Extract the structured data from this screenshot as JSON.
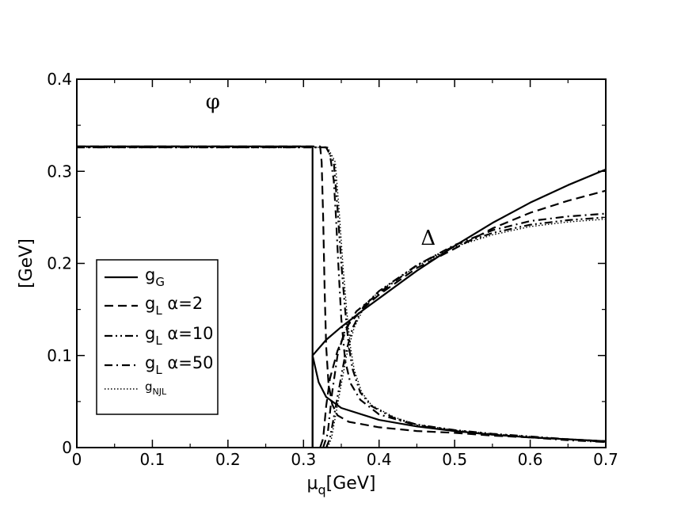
{
  "chart_data": {
    "type": "line",
    "xlabel": "μ_q[GeV]",
    "ylabel": "[GeV]",
    "xlim": [
      0,
      0.7
    ],
    "ylim": [
      0,
      0.4
    ],
    "x_ticks": [
      "0",
      "0.1",
      "0.2",
      "0.3",
      "0.4",
      "0.5",
      "0.6",
      "0.7"
    ],
    "y_ticks": [
      "0",
      "0.1",
      "0.2",
      "0.3",
      "0.4"
    ],
    "grid": false,
    "legend_position": "left",
    "annotations": [
      {
        "text": "φ",
        "x": 0.18,
        "y": 0.375
      },
      {
        "text": "Δ",
        "x": 0.465,
        "y": 0.227
      }
    ],
    "series": [
      {
        "name": "g_G",
        "legend_main": "g",
        "legend_sub": "G",
        "legend_suffix": "",
        "dash": "solid",
        "phi": [
          [
            0,
            0.327
          ],
          [
            0.312,
            0.327
          ],
          [
            0.312,
            0
          ]
        ],
        "delta": [
          [
            0.312,
            0
          ],
          [
            0.312,
            0.1
          ],
          [
            0.33,
            0.117
          ],
          [
            0.35,
            0.131
          ],
          [
            0.38,
            0.15
          ],
          [
            0.4,
            0.162
          ],
          [
            0.45,
            0.192
          ],
          [
            0.5,
            0.219
          ],
          [
            0.55,
            0.244
          ],
          [
            0.6,
            0.266
          ],
          [
            0.65,
            0.285
          ],
          [
            0.7,
            0.302
          ]
        ],
        "low": [
          [
            0.312,
            0.1
          ],
          [
            0.32,
            0.071
          ],
          [
            0.33,
            0.055
          ],
          [
            0.35,
            0.043
          ],
          [
            0.4,
            0.03
          ],
          [
            0.45,
            0.023
          ],
          [
            0.5,
            0.018
          ],
          [
            0.55,
            0.014
          ],
          [
            0.6,
            0.011
          ],
          [
            0.65,
            0.009
          ],
          [
            0.7,
            0.007
          ]
        ]
      },
      {
        "name": "g_L α=2",
        "legend_main": "g",
        "legend_sub": "L",
        "legend_suffix": " α=2",
        "dash": "dashed",
        "phi": [
          [
            0,
            0.327
          ],
          [
            0.322,
            0.327
          ],
          [
            0.324,
            0.31
          ],
          [
            0.326,
            0.25
          ],
          [
            0.328,
            0.17
          ],
          [
            0.33,
            0.11
          ],
          [
            0.333,
            0.07
          ],
          [
            0.338,
            0.047
          ],
          [
            0.345,
            0.035
          ],
          [
            0.36,
            0.028
          ],
          [
            0.4,
            0.022
          ],
          [
            0.45,
            0.018
          ],
          [
            0.5,
            0.016
          ],
          [
            0.55,
            0.013
          ],
          [
            0.6,
            0.011
          ],
          [
            0.65,
            0.009
          ],
          [
            0.7,
            0.007
          ]
        ],
        "delta": [
          [
            0.322,
            0
          ],
          [
            0.326,
            0.01
          ],
          [
            0.33,
            0.045
          ],
          [
            0.335,
            0.075
          ],
          [
            0.345,
            0.105
          ],
          [
            0.36,
            0.134
          ],
          [
            0.38,
            0.152
          ],
          [
            0.4,
            0.166
          ],
          [
            0.45,
            0.195
          ],
          [
            0.5,
            0.216
          ],
          [
            0.55,
            0.238
          ],
          [
            0.6,
            0.255
          ],
          [
            0.65,
            0.268
          ],
          [
            0.7,
            0.279
          ]
        ]
      },
      {
        "name": "g_L α=10",
        "legend_main": "g",
        "legend_sub": "L",
        "legend_suffix": " α=10",
        "dash": "dashdotdot",
        "phi": [
          [
            0,
            0.326
          ],
          [
            0.33,
            0.326
          ],
          [
            0.34,
            0.31
          ],
          [
            0.345,
            0.26
          ],
          [
            0.35,
            0.2
          ],
          [
            0.355,
            0.15
          ],
          [
            0.36,
            0.11
          ],
          [
            0.365,
            0.085
          ],
          [
            0.375,
            0.06
          ],
          [
            0.39,
            0.045
          ],
          [
            0.42,
            0.032
          ],
          [
            0.45,
            0.025
          ],
          [
            0.5,
            0.019
          ],
          [
            0.55,
            0.015
          ],
          [
            0.6,
            0.012
          ],
          [
            0.65,
            0.009
          ],
          [
            0.7,
            0.006
          ]
        ],
        "delta": [
          [
            0.33,
            0
          ],
          [
            0.335,
            0.01
          ],
          [
            0.345,
            0.055
          ],
          [
            0.355,
            0.1
          ],
          [
            0.365,
            0.13
          ],
          [
            0.38,
            0.154
          ],
          [
            0.4,
            0.17
          ],
          [
            0.45,
            0.198
          ],
          [
            0.5,
            0.219
          ],
          [
            0.55,
            0.233
          ],
          [
            0.6,
            0.242
          ],
          [
            0.65,
            0.247
          ],
          [
            0.7,
            0.25
          ]
        ]
      },
      {
        "name": "g_L α=50",
        "legend_main": "g",
        "legend_sub": "L",
        "legend_suffix": " α=50",
        "dash": "dashdot",
        "phi": [
          [
            0,
            0.326
          ],
          [
            0.33,
            0.326
          ],
          [
            0.335,
            0.318
          ],
          [
            0.34,
            0.29
          ],
          [
            0.343,
            0.25
          ],
          [
            0.346,
            0.2
          ],
          [
            0.35,
            0.14
          ],
          [
            0.355,
            0.095
          ],
          [
            0.362,
            0.07
          ],
          [
            0.375,
            0.052
          ],
          [
            0.4,
            0.036
          ],
          [
            0.45,
            0.024
          ],
          [
            0.5,
            0.018
          ],
          [
            0.55,
            0.014
          ],
          [
            0.6,
            0.011
          ],
          [
            0.65,
            0.008
          ],
          [
            0.7,
            0.006
          ]
        ],
        "delta": [
          [
            0.326,
            0
          ],
          [
            0.332,
            0.015
          ],
          [
            0.338,
            0.06
          ],
          [
            0.345,
            0.1
          ],
          [
            0.355,
            0.128
          ],
          [
            0.37,
            0.148
          ],
          [
            0.4,
            0.168
          ],
          [
            0.45,
            0.198
          ],
          [
            0.5,
            0.22
          ],
          [
            0.55,
            0.236
          ],
          [
            0.6,
            0.246
          ],
          [
            0.65,
            0.251
          ],
          [
            0.7,
            0.254
          ]
        ]
      },
      {
        "name": "g_NJL",
        "legend_main": "g",
        "legend_sub": "NJL",
        "legend_suffix": "",
        "dash": "dotted",
        "phi": [
          [
            0,
            0.326
          ],
          [
            0.332,
            0.326
          ],
          [
            0.342,
            0.31
          ],
          [
            0.347,
            0.26
          ],
          [
            0.352,
            0.2
          ],
          [
            0.357,
            0.15
          ],
          [
            0.362,
            0.11
          ],
          [
            0.367,
            0.085
          ],
          [
            0.377,
            0.06
          ],
          [
            0.39,
            0.046
          ],
          [
            0.42,
            0.033
          ],
          [
            0.45,
            0.025
          ],
          [
            0.5,
            0.019
          ],
          [
            0.55,
            0.015
          ],
          [
            0.6,
            0.012
          ],
          [
            0.65,
            0.009
          ],
          [
            0.7,
            0.006
          ]
        ],
        "delta": [
          [
            0.332,
            0
          ],
          [
            0.337,
            0.01
          ],
          [
            0.347,
            0.055
          ],
          [
            0.357,
            0.1
          ],
          [
            0.367,
            0.13
          ],
          [
            0.38,
            0.152
          ],
          [
            0.4,
            0.17
          ],
          [
            0.45,
            0.197
          ],
          [
            0.5,
            0.218
          ],
          [
            0.55,
            0.231
          ],
          [
            0.6,
            0.24
          ],
          [
            0.65,
            0.245
          ],
          [
            0.7,
            0.248
          ]
        ]
      }
    ]
  }
}
